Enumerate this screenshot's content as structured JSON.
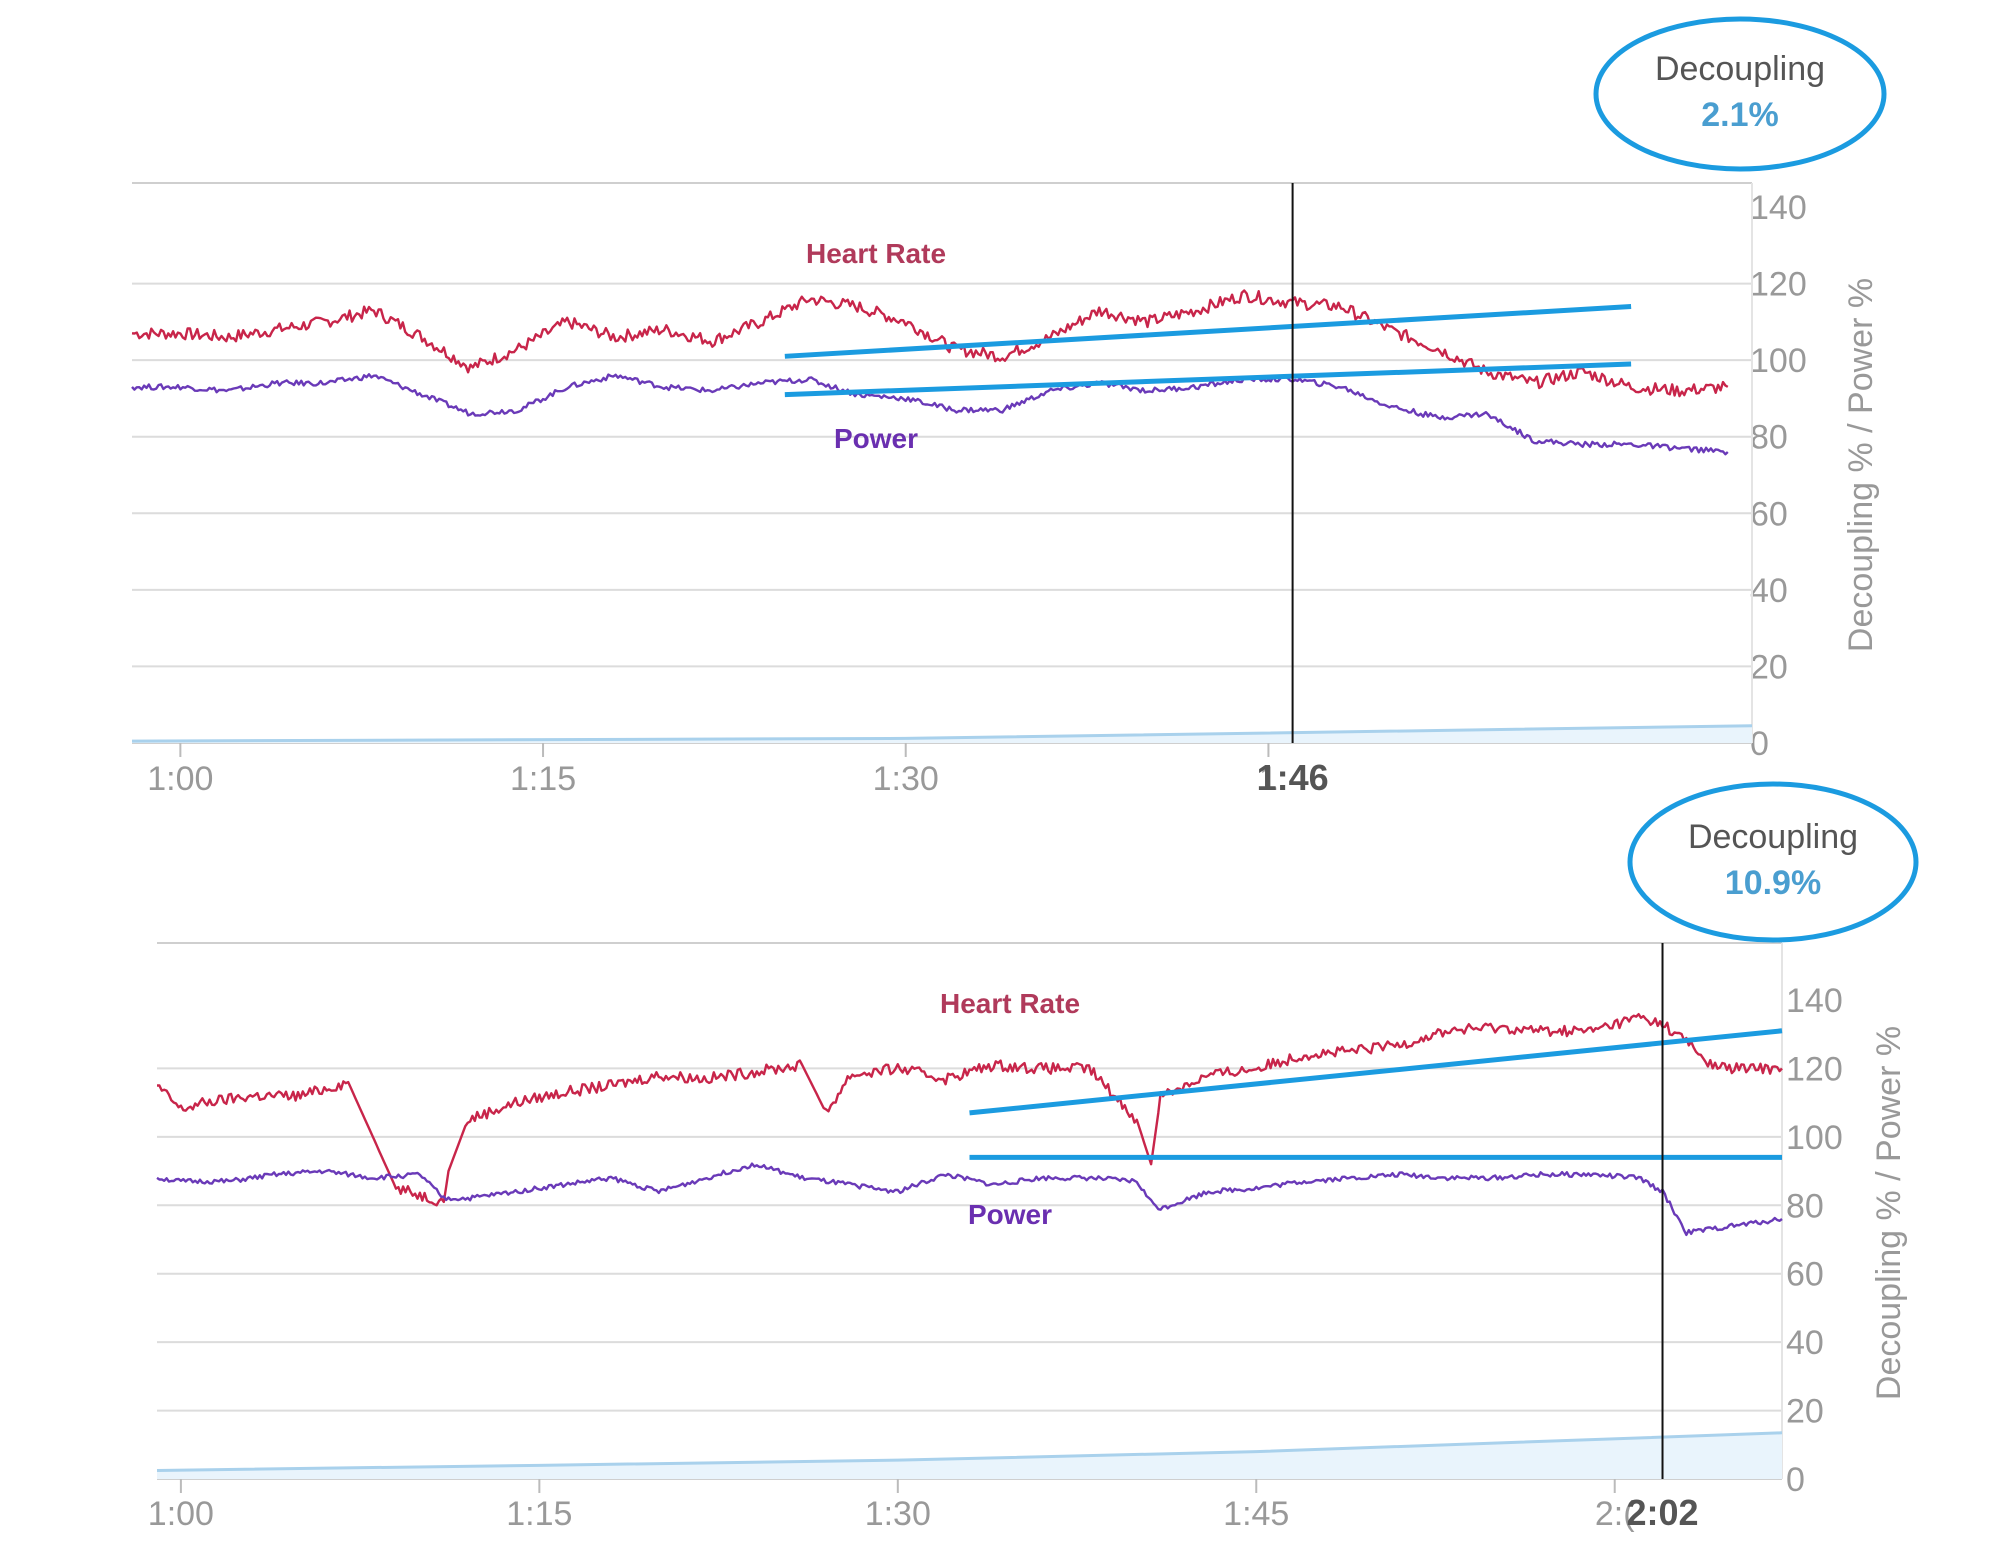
{
  "colors": {
    "heart_rate": "#c8254a",
    "heart_rate_label": "#b03a5b",
    "power": "#6a3ab8",
    "power_label": "#6a2fb0",
    "trend": "#1b9be0",
    "decoupling_area_line": "#a9d1ec",
    "decoupling_area_fill": "#e9f4fc",
    "grid": "#dcdcdc",
    "axis_text": "#999999",
    "highlight_text": "#555555",
    "badge_title": "#555555",
    "badge_value": "#4a9ed0",
    "cursor": "#111111"
  },
  "chart_data": [
    {
      "type": "line",
      "badge": {
        "title": "Decoupling",
        "value": "2.1%"
      },
      "ylabel": "Decoupling % / Power %",
      "ylim": [
        0,
        140
      ],
      "yticks": [
        "0",
        "20",
        "40",
        "60",
        "80",
        "100",
        "120",
        "140"
      ],
      "xlim": [
        "0:58",
        "2:05"
      ],
      "xticks": [
        {
          "at": "1:00",
          "label": "1:00"
        },
        {
          "at": "1:15",
          "label": "1:15"
        },
        {
          "at": "1:30",
          "label": "1:30"
        },
        {
          "at": "1:45",
          "label": "1"
        }
      ],
      "cursor": {
        "at": "1:46",
        "label": "1:46"
      },
      "series_labels": {
        "heart_rate": "Heart Rate",
        "power": "Power"
      },
      "series": [
        {
          "name": "Heart Rate",
          "x": [
            "0:58",
            "1:00",
            "1:02",
            "1:04",
            "1:06",
            "1:08",
            "1:10",
            "1:12",
            "1:14",
            "1:16",
            "1:18",
            "1:20",
            "1:22",
            "1:24",
            "1:26",
            "1:28",
            "1:30",
            "1:32",
            "1:34",
            "1:36",
            "1:38",
            "1:40",
            "1:42",
            "1:44",
            "1:46",
            "1:48",
            "1:50",
            "1:52",
            "1:54",
            "1:56",
            "1:58",
            "2:00",
            "2:02",
            "2:04"
          ],
          "values": [
            107,
            107,
            106,
            108,
            110,
            113,
            106,
            98,
            103,
            110,
            106,
            108,
            105,
            110,
            116,
            114,
            110,
            103,
            101,
            106,
            113,
            110,
            113,
            117,
            115,
            114,
            108,
            103,
            97,
            94,
            97,
            93,
            92,
            93
          ]
        },
        {
          "name": "Power",
          "x": [
            "0:58",
            "1:00",
            "1:02",
            "1:04",
            "1:06",
            "1:08",
            "1:10",
            "1:12",
            "1:14",
            "1:16",
            "1:18",
            "1:20",
            "1:22",
            "1:24",
            "1:26",
            "1:28",
            "1:30",
            "1:32",
            "1:34",
            "1:36",
            "1:38",
            "1:40",
            "1:42",
            "1:44",
            "1:46",
            "1:48",
            "1:50",
            "1:52",
            "1:54",
            "1:56",
            "1:58",
            "2:00",
            "2:02",
            "2:04"
          ],
          "values": [
            93,
            93,
            92,
            94,
            94,
            96,
            91,
            86,
            87,
            93,
            96,
            93,
            92,
            94,
            95,
            91,
            90,
            87,
            87,
            92,
            94,
            92,
            93,
            95,
            95,
            93,
            88,
            85,
            86,
            79,
            78,
            78,
            77,
            76
          ]
        },
        {
          "name": "Decoupling",
          "x": [
            "0:58",
            "1:30",
            "2:05"
          ],
          "values": [
            0.5,
            1.2,
            4.5
          ]
        }
      ],
      "trend_lines": [
        {
          "series": "Heart Rate",
          "x": [
            "1:25",
            "2:00"
          ],
          "values": [
            101,
            114
          ]
        },
        {
          "series": "Power",
          "x": [
            "1:25",
            "2:00"
          ],
          "values": [
            91,
            99
          ]
        }
      ]
    },
    {
      "type": "line",
      "badge": {
        "title": "Decoupling",
        "value": "10.9%"
      },
      "ylabel": "Decoupling % / Power %",
      "ylim": [
        0,
        150
      ],
      "yticks": [
        "0",
        "20",
        "40",
        "60",
        "80",
        "100",
        "120",
        "140"
      ],
      "xlim": [
        "0:59",
        "2:07"
      ],
      "xticks": [
        {
          "at": "1:00",
          "label": "1:00"
        },
        {
          "at": "1:15",
          "label": "1:15"
        },
        {
          "at": "1:30",
          "label": "1:30"
        },
        {
          "at": "1:45",
          "label": "1:45"
        },
        {
          "at": "2:00",
          "label": "2:("
        }
      ],
      "cursor": {
        "at": "2:02",
        "label": "2:02"
      },
      "series_labels": {
        "heart_rate": "Heart Rate",
        "power": "Power"
      },
      "series": [
        {
          "name": "Heart Rate",
          "x": [
            "0:59",
            "1:00",
            "1:01",
            "1:03",
            "1:05",
            "1:07",
            "1:09",
            "1:11",
            "1:11.2",
            "1:12",
            "1:14",
            "1:16",
            "1:18",
            "1:20",
            "1:22",
            "1:24",
            "1:26",
            "1:27",
            "1:28",
            "1:30",
            "1:32",
            "1:34",
            "1:36",
            "1:38",
            "1:40",
            "1:40.6",
            "1:41",
            "1:43",
            "1:45",
            "1:47",
            "1:49",
            "1:51",
            "1:53",
            "1:55",
            "1:57",
            "1:59",
            "2:01",
            "2:02",
            "2:03",
            "2:04",
            "2:05",
            "2:07"
          ],
          "values": [
            115,
            108,
            110,
            112,
            112,
            116,
            85,
            81,
            90,
            105,
            110,
            113,
            115,
            118,
            117,
            119,
            121,
            107,
            118,
            120,
            117,
            121,
            120,
            120,
            105,
            92,
            112,
            118,
            120,
            124,
            125,
            127,
            131,
            132,
            131,
            131,
            135,
            133,
            128,
            121,
            120,
            120
          ]
        },
        {
          "name": "Power",
          "x": [
            "0:59",
            "1:00",
            "1:02",
            "1:04",
            "1:06",
            "1:08",
            "1:10",
            "1:11",
            "1:12",
            "1:14",
            "1:16",
            "1:18",
            "1:20",
            "1:22",
            "1:24",
            "1:26",
            "1:28",
            "1:30",
            "1:32",
            "1:34",
            "1:36",
            "1:38",
            "1:40",
            "1:40.6",
            "1:41",
            "1:43",
            "1:45",
            "1:47",
            "1:49",
            "1:51",
            "1:53",
            "1:55",
            "1:57",
            "1:59",
            "2:01",
            "2:02",
            "2:03",
            "2:05",
            "2:07"
          ],
          "values": [
            88,
            87,
            87,
            89,
            90,
            88,
            89,
            82,
            82,
            84,
            86,
            88,
            84,
            88,
            92,
            88,
            86,
            84,
            89,
            86,
            88,
            88,
            87,
            81,
            79,
            84,
            85,
            87,
            88,
            89,
            88,
            88,
            89,
            89,
            88,
            84,
            72,
            74,
            76
          ]
        },
        {
          "name": "Decoupling",
          "x": [
            "0:59",
            "1:15",
            "1:30",
            "1:45",
            "2:07"
          ],
          "values": [
            2.5,
            4.0,
            5.5,
            8.0,
            13.5
          ]
        }
      ],
      "trend_lines": [
        {
          "series": "Heart Rate",
          "x": [
            "1:33",
            "2:07"
          ],
          "values": [
            107,
            131
          ]
        },
        {
          "series": "Power",
          "x": [
            "1:33",
            "2:07"
          ],
          "values": [
            94,
            94
          ]
        }
      ]
    }
  ]
}
